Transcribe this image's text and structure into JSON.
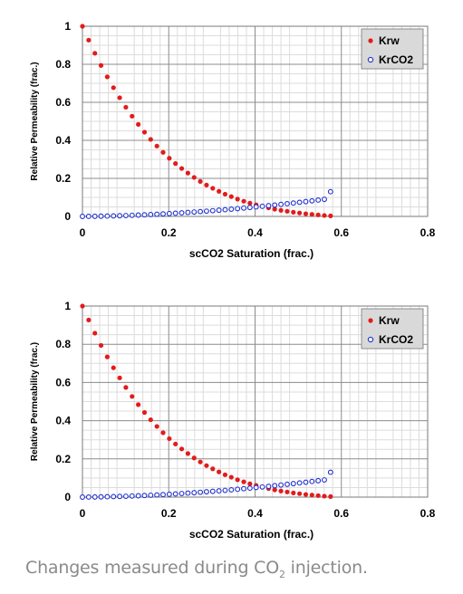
{
  "chart_data": [
    {
      "type": "scatter",
      "xlabel": "scCO2 Saturation (frac.)",
      "ylabel": "Relative Permeability (frac.)",
      "xlim": [
        0,
        0.8
      ],
      "ylim": [
        0,
        1
      ],
      "xticks": [
        "0",
        "0.2",
        "0.4",
        "0.6",
        "0.8"
      ],
      "yticks": [
        "0",
        "0.2",
        "0.4",
        "0.6",
        "0.8",
        "1"
      ],
      "grid": true,
      "legend_position": "top-right",
      "series": [
        {
          "name": "Krw",
          "marker": "filled-circle",
          "color": "#e31b1b",
          "x": [
            0,
            0.0144,
            0.0288,
            0.0431,
            0.0575,
            0.0719,
            0.0863,
            0.1006,
            0.115,
            0.1294,
            0.1438,
            0.1581,
            0.1725,
            0.1869,
            0.2013,
            0.2156,
            0.23,
            0.2444,
            0.2588,
            0.2731,
            0.2875,
            0.3019,
            0.3163,
            0.3306,
            0.345,
            0.3594,
            0.3738,
            0.3881,
            0.4025,
            0.4169,
            0.4313,
            0.4456,
            0.46,
            0.4744,
            0.4888,
            0.5031,
            0.5175,
            0.5319,
            0.5463,
            0.5606,
            0.575
          ],
          "y": [
            1,
            0.927,
            0.858,
            0.794,
            0.734,
            0.677,
            0.624,
            0.574,
            0.527,
            0.484,
            0.443,
            0.405,
            0.37,
            0.337,
            0.306,
            0.278,
            0.252,
            0.228,
            0.205,
            0.184,
            0.165,
            0.148,
            0.132,
            0.117,
            0.104,
            0.091,
            0.08,
            0.07,
            0.061,
            0.052,
            0.045,
            0.038,
            0.032,
            0.027,
            0.022,
            0.018,
            0.014,
            0.011,
            0.008,
            0.005,
            0.003
          ]
        },
        {
          "name": "KrCO2",
          "marker": "open-circle",
          "color": "#1f2fcc",
          "x": [
            0,
            0.0144,
            0.0288,
            0.0431,
            0.0575,
            0.0719,
            0.0863,
            0.1006,
            0.115,
            0.1294,
            0.1438,
            0.1581,
            0.1725,
            0.1869,
            0.2013,
            0.2156,
            0.23,
            0.2444,
            0.2588,
            0.2731,
            0.2875,
            0.3019,
            0.3163,
            0.3306,
            0.345,
            0.3594,
            0.3738,
            0.3881,
            0.4025,
            0.4169,
            0.4313,
            0.4456,
            0.46,
            0.4744,
            0.4888,
            0.5031,
            0.5175,
            0.5319,
            0.5463,
            0.5606,
            0.575
          ],
          "y": [
            0,
            0.0002,
            0.0006,
            0.0012,
            0.0019,
            0.0027,
            0.0036,
            0.0046,
            0.0058,
            0.0071,
            0.0084,
            0.0099,
            0.0115,
            0.0132,
            0.0149,
            0.0168,
            0.0188,
            0.0209,
            0.0231,
            0.0254,
            0.0278,
            0.0302,
            0.0328,
            0.0354,
            0.0382,
            0.041,
            0.0439,
            0.047,
            0.0501,
            0.0532,
            0.0565,
            0.0599,
            0.0633,
            0.0669,
            0.0705,
            0.0742,
            0.078,
            0.0819,
            0.0859,
            0.0899,
            0.13
          ]
        }
      ]
    },
    {
      "type": "scatter",
      "xlabel": "scCO2 Saturation (frac.)",
      "ylabel": "Relative Permeability (frac.)",
      "xlim": [
        0,
        0.8
      ],
      "ylim": [
        0,
        1
      ],
      "xticks": [
        "0",
        "0.2",
        "0.4",
        "0.6",
        "0.8"
      ],
      "yticks": [
        "0",
        "0.2",
        "0.4",
        "0.6",
        "0.8",
        "1"
      ],
      "grid": true,
      "legend_position": "top-right",
      "series": [
        {
          "name": "Krw",
          "marker": "filled-circle",
          "color": "#e31b1b",
          "x": [
            0,
            0.0144,
            0.0288,
            0.0431,
            0.0575,
            0.0719,
            0.0863,
            0.1006,
            0.115,
            0.1294,
            0.1438,
            0.1581,
            0.1725,
            0.1869,
            0.2013,
            0.2156,
            0.23,
            0.2444,
            0.2588,
            0.2731,
            0.2875,
            0.3019,
            0.3163,
            0.3306,
            0.345,
            0.3594,
            0.3738,
            0.3881,
            0.4025,
            0.4169,
            0.4313,
            0.4456,
            0.46,
            0.4744,
            0.4888,
            0.5031,
            0.5175,
            0.5319,
            0.5463,
            0.5606,
            0.575
          ],
          "y": [
            1,
            0.927,
            0.858,
            0.794,
            0.734,
            0.677,
            0.624,
            0.574,
            0.527,
            0.484,
            0.443,
            0.405,
            0.37,
            0.337,
            0.306,
            0.278,
            0.252,
            0.228,
            0.205,
            0.184,
            0.165,
            0.148,
            0.132,
            0.117,
            0.104,
            0.091,
            0.08,
            0.07,
            0.061,
            0.052,
            0.045,
            0.038,
            0.032,
            0.027,
            0.022,
            0.018,
            0.014,
            0.011,
            0.008,
            0.005,
            0.003
          ]
        },
        {
          "name": "KrCO2",
          "marker": "open-circle",
          "color": "#1f2fcc",
          "x": [
            0,
            0.0144,
            0.0288,
            0.0431,
            0.0575,
            0.0719,
            0.0863,
            0.1006,
            0.115,
            0.1294,
            0.1438,
            0.1581,
            0.1725,
            0.1869,
            0.2013,
            0.2156,
            0.23,
            0.2444,
            0.2588,
            0.2731,
            0.2875,
            0.3019,
            0.3163,
            0.3306,
            0.345,
            0.3594,
            0.3738,
            0.3881,
            0.4025,
            0.4169,
            0.4313,
            0.4456,
            0.46,
            0.4744,
            0.4888,
            0.5031,
            0.5175,
            0.5319,
            0.5463,
            0.5606,
            0.575
          ],
          "y": [
            0,
            0.0002,
            0.0006,
            0.0012,
            0.0019,
            0.0027,
            0.0036,
            0.0046,
            0.0058,
            0.0071,
            0.0084,
            0.0099,
            0.0115,
            0.0132,
            0.0149,
            0.0168,
            0.0188,
            0.0209,
            0.0231,
            0.0254,
            0.0278,
            0.0302,
            0.0328,
            0.0354,
            0.0382,
            0.041,
            0.0439,
            0.047,
            0.0501,
            0.0532,
            0.0565,
            0.0599,
            0.0633,
            0.0669,
            0.0705,
            0.0742,
            0.078,
            0.0819,
            0.0859,
            0.0899,
            0.13
          ]
        }
      ]
    }
  ],
  "caption": {
    "before": "Changes measured during CO",
    "subscript": "2",
    "after": " injection."
  }
}
